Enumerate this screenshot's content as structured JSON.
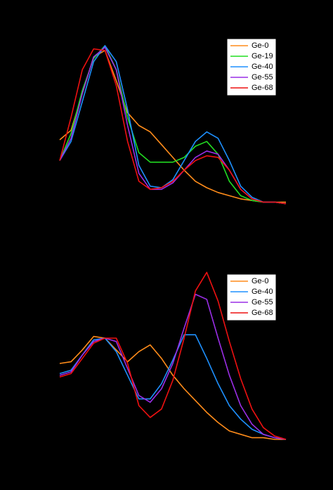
{
  "chart_data": [
    {
      "type": "line",
      "legend": "upper right",
      "x": [
        0,
        5,
        10,
        15,
        20,
        25,
        30,
        35,
        40,
        45,
        50,
        55,
        60,
        65,
        70,
        75,
        80,
        85,
        90,
        95,
        100
      ],
      "xlim": [
        0,
        100
      ],
      "ylim": [
        0,
        1
      ],
      "series": [
        {
          "name": "Ge-0",
          "color": "#ff8c1a",
          "values": [
            0.41,
            0.47,
            0.7,
            0.93,
            0.97,
            0.78,
            0.58,
            0.5,
            0.46,
            0.38,
            0.3,
            0.22,
            0.15,
            0.11,
            0.08,
            0.06,
            0.04,
            0.03,
            0.02,
            0.02,
            0.02
          ]
        },
        {
          "name": "Ge-19",
          "color": "#22dd22",
          "values": [
            0.28,
            0.45,
            0.72,
            0.92,
            1.0,
            0.85,
            0.55,
            0.33,
            0.27,
            0.27,
            0.27,
            0.3,
            0.37,
            0.4,
            0.32,
            0.15,
            0.06,
            0.03,
            0.02,
            0.02,
            0.01
          ]
        },
        {
          "name": "Ge-40",
          "color": "#1e90ff",
          "values": [
            0.28,
            0.4,
            0.65,
            0.9,
            1.0,
            0.9,
            0.6,
            0.25,
            0.12,
            0.11,
            0.16,
            0.28,
            0.4,
            0.46,
            0.42,
            0.28,
            0.12,
            0.05,
            0.02,
            0.02,
            0.01
          ]
        },
        {
          "name": "Ge-55",
          "color": "#9a2ee6",
          "values": [
            0.28,
            0.42,
            0.7,
            0.93,
            0.99,
            0.85,
            0.5,
            0.2,
            0.1,
            0.1,
            0.14,
            0.22,
            0.3,
            0.34,
            0.32,
            0.22,
            0.1,
            0.04,
            0.02,
            0.02,
            0.01
          ]
        },
        {
          "name": "Ge-68",
          "color": "#ee1111",
          "values": [
            0.28,
            0.55,
            0.85,
            0.98,
            0.97,
            0.75,
            0.4,
            0.15,
            0.1,
            0.11,
            0.15,
            0.22,
            0.28,
            0.31,
            0.3,
            0.22,
            0.1,
            0.04,
            0.02,
            0.02,
            0.01
          ]
        }
      ]
    },
    {
      "type": "line",
      "legend": "upper right",
      "x": [
        0,
        5,
        10,
        15,
        20,
        25,
        30,
        35,
        40,
        45,
        50,
        55,
        60,
        65,
        70,
        75,
        80,
        85,
        90,
        95,
        100
      ],
      "xlim": [
        0,
        100
      ],
      "ylim": [
        0,
        1
      ],
      "series": [
        {
          "name": "Ge-0",
          "color": "#ff8c1a",
          "values": [
            0.45,
            0.46,
            0.53,
            0.61,
            0.6,
            0.53,
            0.46,
            0.52,
            0.56,
            0.48,
            0.38,
            0.3,
            0.23,
            0.16,
            0.1,
            0.05,
            0.03,
            0.01,
            0.01,
            0,
            0
          ]
        },
        {
          "name": "Ge-40",
          "color": "#1e90ff",
          "values": [
            0.39,
            0.41,
            0.5,
            0.59,
            0.6,
            0.52,
            0.38,
            0.24,
            0.24,
            0.33,
            0.47,
            0.62,
            0.62,
            0.48,
            0.33,
            0.2,
            0.12,
            0.06,
            0.03,
            0.01,
            0
          ]
        },
        {
          "name": "Ge-55",
          "color": "#9a2ee6",
          "values": [
            0.38,
            0.4,
            0.5,
            0.58,
            0.6,
            0.58,
            0.42,
            0.26,
            0.22,
            0.3,
            0.45,
            0.66,
            0.86,
            0.83,
            0.6,
            0.38,
            0.2,
            0.09,
            0.03,
            0.01,
            0
          ]
        },
        {
          "name": "Ge-68",
          "color": "#ee1111",
          "values": [
            0.37,
            0.39,
            0.48,
            0.57,
            0.6,
            0.6,
            0.45,
            0.2,
            0.13,
            0.18,
            0.35,
            0.6,
            0.88,
            0.99,
            0.82,
            0.58,
            0.36,
            0.18,
            0.07,
            0.02,
            0
          ]
        }
      ]
    }
  ]
}
